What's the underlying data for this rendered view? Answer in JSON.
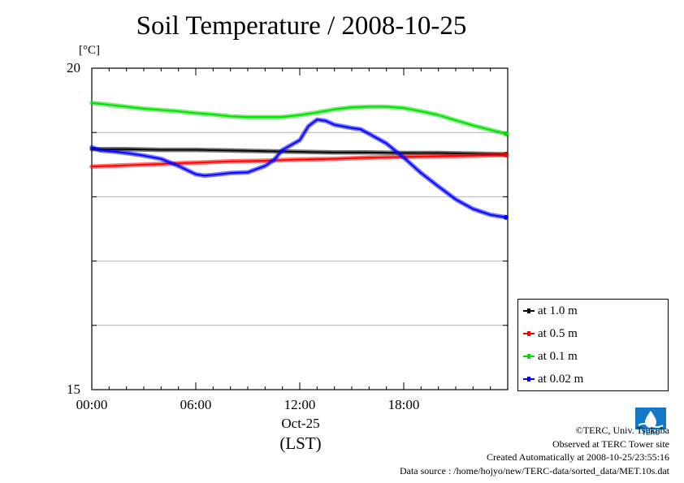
{
  "chart_data": {
    "type": "line",
    "title": "Soil Temperature / 2008-10-25",
    "ylabel": "[°C]",
    "xlabel": "(LST)",
    "date_label": "Oct-25",
    "ylim": [
      15,
      20
    ],
    "xlim": [
      0,
      24
    ],
    "y_ticks": [
      15,
      16,
      17,
      18,
      19,
      20
    ],
    "y_tick_labels": [
      "15",
      "20"
    ],
    "x_ticks": [
      0,
      6,
      12,
      18
    ],
    "x_tick_labels": [
      "00:00",
      "06:00",
      "12:00",
      "18:00"
    ],
    "grid": true,
    "legend_position": "right-bottom",
    "series": [
      {
        "name": "at 1.0 m",
        "color": "#000000",
        "x": [
          0,
          2,
          4,
          6,
          8,
          10,
          12,
          14,
          16,
          18,
          20,
          22,
          23.9
        ],
        "y": [
          18.74,
          18.74,
          18.73,
          18.73,
          18.72,
          18.71,
          18.7,
          18.69,
          18.69,
          18.68,
          18.68,
          18.67,
          18.66
        ]
      },
      {
        "name": "at 0.5 m",
        "color": "#ff0000",
        "x": [
          0,
          2,
          4,
          6,
          8,
          10,
          12,
          14,
          16,
          18,
          20,
          22,
          23.9
        ],
        "y": [
          18.47,
          18.49,
          18.51,
          18.53,
          18.55,
          18.56,
          18.58,
          18.59,
          18.61,
          18.62,
          18.63,
          18.64,
          18.65
        ]
      },
      {
        "name": "at 0.1 m",
        "color": "#00dd00",
        "x": [
          0,
          1,
          2,
          3,
          4,
          5,
          6,
          7,
          8,
          9,
          10,
          11,
          12,
          13,
          14,
          15,
          16,
          17,
          18,
          19,
          20,
          21,
          22,
          23,
          23.9
        ],
        "y": [
          19.46,
          19.43,
          19.4,
          19.37,
          19.35,
          19.33,
          19.3,
          19.28,
          19.25,
          19.24,
          19.24,
          19.24,
          19.27,
          19.31,
          19.36,
          19.39,
          19.4,
          19.4,
          19.38,
          19.33,
          19.27,
          19.19,
          19.11,
          19.04,
          18.98
        ]
      },
      {
        "name": "at 0.02 m",
        "color": "#0000ff",
        "x": [
          0,
          0.5,
          1,
          2,
          3,
          4,
          5,
          6,
          6.5,
          7,
          8,
          9,
          10,
          10.5,
          11,
          12,
          12.5,
          13,
          13.5,
          14,
          15,
          15.5,
          16,
          17,
          18,
          19,
          20,
          21,
          22,
          23,
          23.9
        ],
        "y": [
          18.77,
          18.72,
          18.71,
          18.68,
          18.64,
          18.59,
          18.48,
          18.35,
          18.33,
          18.34,
          18.37,
          18.38,
          18.48,
          18.57,
          18.73,
          18.88,
          19.1,
          19.2,
          19.18,
          19.12,
          19.07,
          19.05,
          18.98,
          18.83,
          18.61,
          18.37,
          18.16,
          17.96,
          17.81,
          17.72,
          17.68
        ]
      }
    ]
  },
  "credits": {
    "copyright": "©TERC, Univ. Tsukuba",
    "observed": "Observed at TERC Tower site",
    "created": "Created Automatically at 2008-10-25/23:55:16",
    "source": "Data source : /home/hojyo/new/TERC-data/sorted_data/MET.10s.dat"
  },
  "logo": {
    "text": "TERC",
    "color": "#1478c8"
  }
}
